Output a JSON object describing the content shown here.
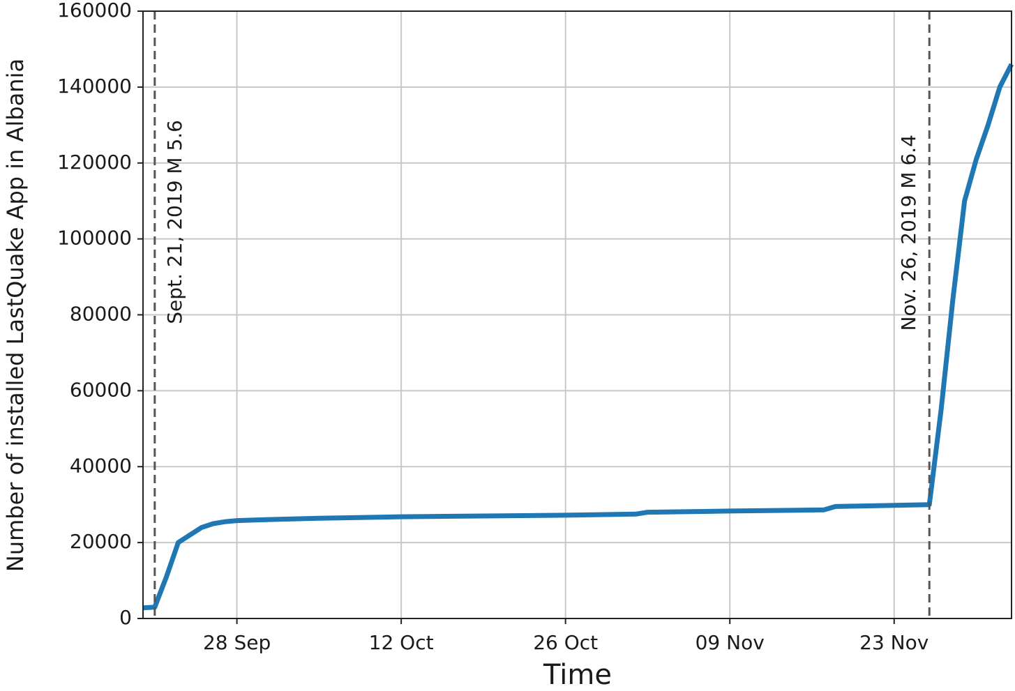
{
  "chart_data": {
    "type": "line",
    "xlabel": "Time",
    "ylabel": "Number of installed LastQuake App in Albania",
    "x": [
      "20 Sep",
      "21 Sep",
      "22 Sep",
      "23 Sep",
      "24 Sep",
      "25 Sep",
      "26 Sep",
      "27 Sep",
      "28 Sep",
      "30 Sep",
      "05 Oct",
      "12 Oct",
      "19 Oct",
      "26 Oct",
      "01 Nov",
      "02 Nov",
      "09 Nov",
      "17 Nov",
      "18 Nov",
      "23 Nov",
      "26 Nov",
      "27 Nov",
      "28 Nov",
      "29 Nov",
      "30 Nov",
      "01 Dec",
      "02 Dec",
      "03 Dec"
    ],
    "values": [
      2800,
      3000,
      11000,
      20000,
      22000,
      24000,
      25000,
      25500,
      25800,
      26000,
      26400,
      26800,
      27000,
      27200,
      27500,
      28000,
      28300,
      28600,
      29500,
      29800,
      30000,
      55000,
      84000,
      110000,
      121000,
      130000,
      140000,
      146000
    ],
    "color": "#1f77b4",
    "xlim": [
      "20 Sep",
      "03 Dec"
    ],
    "xticks": [
      "28 Sep",
      "12 Oct",
      "26 Oct",
      "09 Nov",
      "23 Nov"
    ],
    "ylim": [
      0,
      160000
    ],
    "yticks": [
      0,
      20000,
      40000,
      60000,
      80000,
      100000,
      120000,
      140000,
      160000
    ],
    "grid": true,
    "vlines": [
      {
        "x": "21 Sep",
        "label": "Sept. 21, 2019 M 5.6"
      },
      {
        "x": "26 Nov",
        "label": "Nov. 26, 2019 M 6.4"
      }
    ]
  }
}
